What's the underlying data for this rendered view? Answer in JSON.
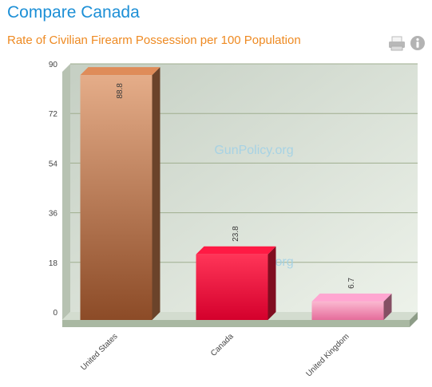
{
  "header": {
    "title": "Compare Canada",
    "subtitle": "Rate of Civilian Firearm Possession per 100 Population"
  },
  "watermark": "GunPolicy.org",
  "colors": {
    "title": "#1c8fd6",
    "subtitle": "#ee8a22",
    "plot_bg_left": "#c9d2c6",
    "plot_bg_right": "#e9efe6",
    "floor": "#a9b7a0",
    "watermark": "#9fd0e6"
  },
  "icons": [
    "print-icon",
    "info-icon"
  ],
  "chart_data": {
    "type": "bar",
    "title": "Rate of Civilian Firearm Possession per 100 Population",
    "categories": [
      "United States",
      "Canada",
      "United Kingdom"
    ],
    "values": [
      88.8,
      23.8,
      6.7
    ],
    "value_labels": [
      "88.8",
      "23.8",
      "6.7"
    ],
    "bar_colors": [
      "#c27a4d",
      "#e8173b",
      "#f290b6"
    ],
    "ylim": [
      0,
      90
    ],
    "yticks": [
      0,
      18,
      36,
      54,
      72,
      90
    ],
    "xlabel": "",
    "ylabel": "",
    "grid": true,
    "legend": "none"
  }
}
